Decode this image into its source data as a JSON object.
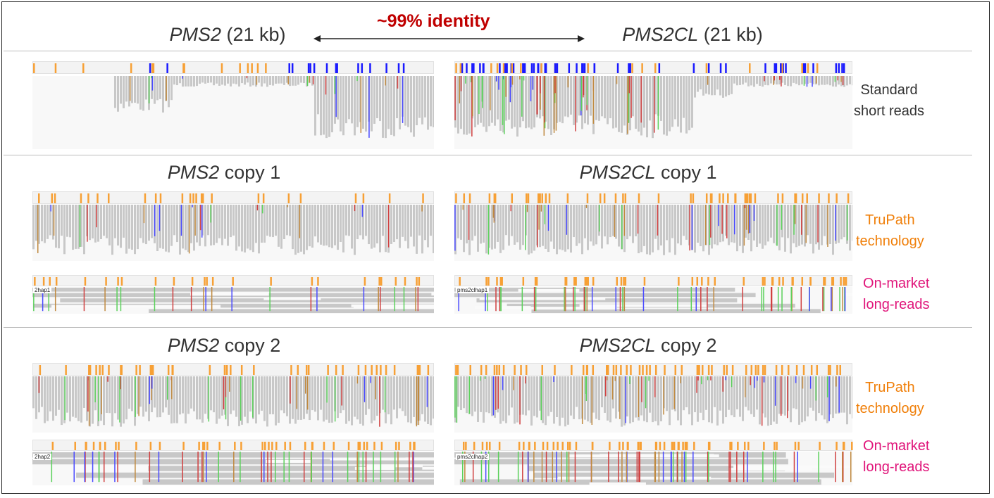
{
  "header": {
    "left_gene": "PMS2",
    "left_size": "(21 kb)",
    "right_gene": "PMS2CL",
    "right_size": "(21 kb)",
    "identity": "~99% identity"
  },
  "sections": [
    {
      "side_label": [
        "Standard",
        "short reads"
      ]
    },
    {
      "left_title_gene": "PMS2",
      "left_title_suffix": "copy 1",
      "right_title_gene": "PMS2CL",
      "right_title_suffix": "copy 1",
      "trupath_label": [
        "TruPath",
        "technology"
      ],
      "longread_label": [
        "On-market",
        "long-reads"
      ],
      "left_track_label": "2hap1",
      "right_track_label": "pms2clhap1"
    },
    {
      "left_title_gene": "PMS2",
      "left_title_suffix": "copy 2",
      "right_title_gene": "PMS2CL",
      "right_title_suffix": "copy 2",
      "trupath_label": [
        "TruPath",
        "technology"
      ],
      "longread_label": [
        "On-market",
        "long-reads"
      ],
      "left_track_label": "2hap2",
      "right_track_label": "pms2clhap2"
    }
  ],
  "colors": {
    "identity": "#c00000",
    "trupath": "#f07f09",
    "longreads": "#e0157a",
    "variant_orange": "#f7a035",
    "variant_blue": "#1a1aff",
    "read_gray": "#c8c8c8"
  }
}
